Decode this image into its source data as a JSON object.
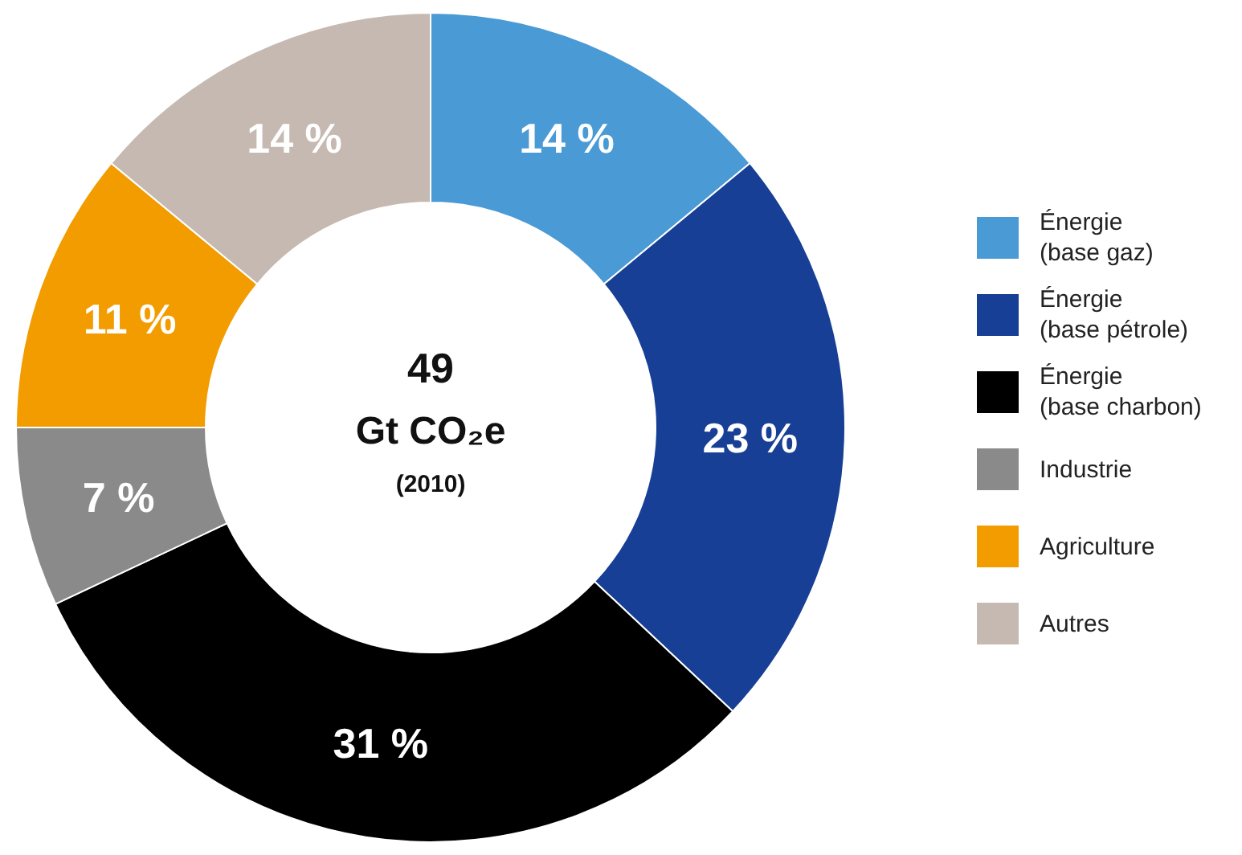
{
  "chart_data": {
    "type": "donut",
    "categories": [
      "Énergie (base gaz)",
      "Énergie (base pétrole)",
      "Énergie (base charbon)",
      "Industrie",
      "Agriculture",
      "Autres"
    ],
    "values": [
      14,
      23,
      31,
      7,
      11,
      14
    ],
    "colors": [
      "#4a9ad5",
      "#173f95",
      "#000000",
      "#8a8a8a",
      "#f39c00",
      "#c5b9b2"
    ],
    "value_labels": [
      "14 %",
      "23 %",
      "31 %",
      "7 %",
      "11 %",
      "14 %"
    ],
    "annotations": [
      "49",
      "Gt CO₂e",
      "(2010)"
    ],
    "legend": "right"
  }
}
